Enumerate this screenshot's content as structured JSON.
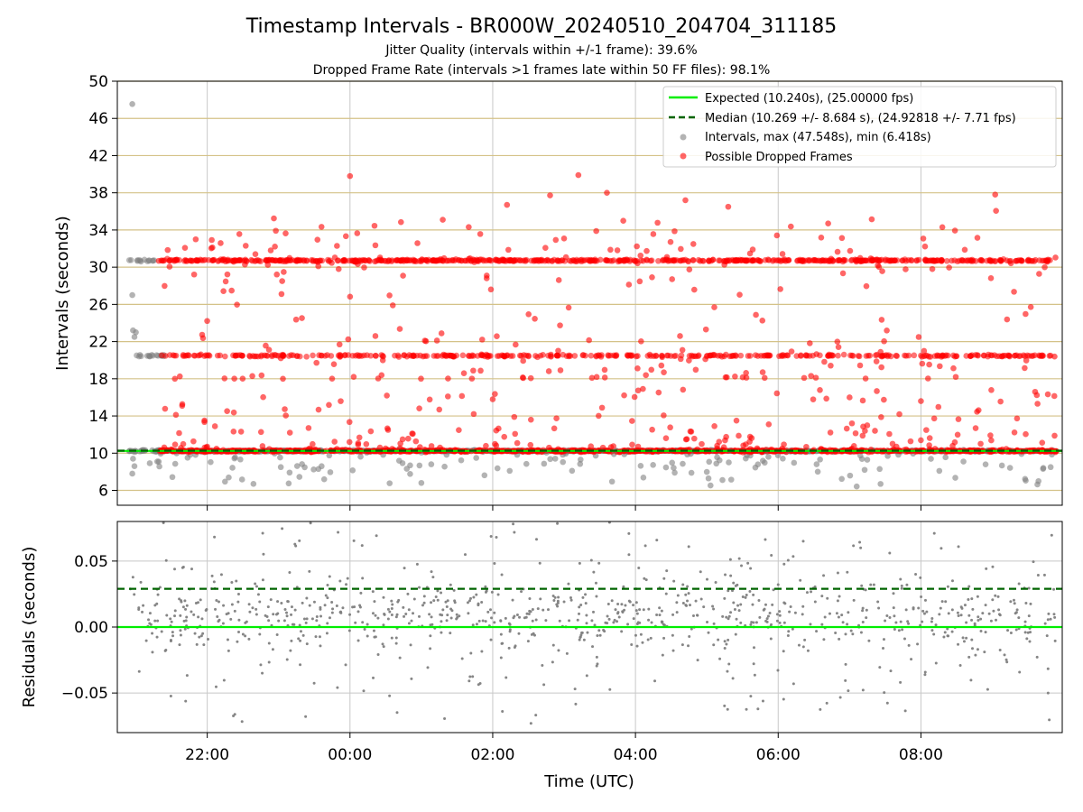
{
  "chart_data": {
    "type": "scatter",
    "title": "Timestamp Intervals - BR000W_20240510_204704_311185",
    "subtitle_lines": [
      "Jitter Quality (intervals within +/-1 frame): 39.6%",
      "Dropped Frame Rate (intervals >1 frames late within 50 FF files): 98.1%"
    ],
    "xlabel": "Time (UTC)",
    "x_tick_labels": [
      "22:00",
      "00:00",
      "02:00",
      "04:00",
      "06:00",
      "08:00"
    ],
    "x_tick_hours": [
      22,
      24,
      26,
      28,
      30,
      32
    ],
    "xlim_hours": [
      20.74,
      33.98
    ],
    "top_panel": {
      "ylabel": "Intervals (seconds)",
      "ylim": [
        4.4,
        50
      ],
      "y_ticks": [
        "6",
        "10",
        "14",
        "18",
        "22",
        "26",
        "30",
        "34",
        "38",
        "42",
        "46",
        "50"
      ],
      "y_tick_values": [
        6,
        10,
        14,
        18,
        22,
        26,
        30,
        34,
        38,
        42,
        46,
        50
      ],
      "hlines": [
        6,
        10,
        14,
        18,
        22,
        26,
        30,
        34,
        38,
        42,
        46,
        50
      ],
      "hline_color": "#d4c288",
      "expected": 10.24,
      "median": 10.269,
      "legend": [
        "Expected (10.240s), (25.00000 fps)",
        "Median (10.269 +/- 8.684 s), (24.92818 +/- 7.71 fps)",
        "Intervals, max (47.548s), min (6.418s)",
        "Possible Dropped Frames"
      ],
      "legend_position": "top-right",
      "series": [
        {
          "name": "Intervals, max (47.548s), min (6.418s)",
          "color": "#808080",
          "bands": [
            {
              "center": 10.24,
              "count": 700,
              "spread": 0.05,
              "x_range": [
                20.9,
                33.9
              ]
            },
            {
              "center": 20.48,
              "count": 18,
              "spread": 0.05,
              "x_range": [
                21.0,
                21.4
              ]
            },
            {
              "center": 30.72,
              "count": 14,
              "spread": 0.05,
              "x_range": [
                20.9,
                21.3
              ]
            }
          ],
          "outlier_range": [
            6.418,
            10.0
          ],
          "outlier_count": 130,
          "points": [
            [
              20.95,
              47.548
            ],
            [
              20.95,
              27.0
            ],
            [
              20.96,
              23.2
            ],
            [
              20.98,
              22.5
            ],
            [
              21.0,
              23.0
            ],
            [
              20.95,
              7.8
            ],
            [
              20.98,
              8.6
            ],
            [
              20.96,
              9.4
            ],
            [
              21.3,
              9.1
            ],
            [
              25.0,
              6.8
            ],
            [
              31.1,
              6.418
            ]
          ]
        },
        {
          "name": "Possible Dropped Frames",
          "color": "#ff0000",
          "bands": [
            {
              "center": 10.24,
              "count": 900,
              "spread": 0.05,
              "x_range": [
                21.3,
                33.9
              ]
            },
            {
              "center": 20.48,
              "count": 380,
              "spread": 0.05,
              "x_range": [
                21.3,
                33.9
              ]
            },
            {
              "center": 30.72,
              "count": 650,
              "spread": 0.05,
              "x_range": [
                21.3,
                33.9
              ]
            }
          ],
          "scatter_ranges": [
            [
              10.3,
              17.0,
              220
            ],
            [
              18.0,
              25.0,
              110
            ],
            [
              26.0,
              40.0,
              130
            ]
          ],
          "points": [
            [
              24.0,
              39.8
            ],
            [
              27.2,
              39.9
            ],
            [
              27.6,
              38.0
            ],
            [
              28.7,
              37.2
            ],
            [
              26.2,
              36.7
            ],
            [
              29.3,
              36.5
            ],
            [
              25.3,
              35.1
            ],
            [
              30.7,
              34.7
            ],
            [
              32.3,
              34.3
            ],
            [
              24.6,
              25.9
            ],
            [
              26.0,
              15.8
            ],
            [
              31.0,
              16.0
            ],
            [
              32.0,
              15.6
            ],
            [
              33.6,
              16.6
            ]
          ]
        }
      ]
    },
    "bottom_panel": {
      "ylabel": "Residuals (seconds)",
      "ylim": [
        -0.08,
        0.08
      ],
      "y_ticks": [
        "0.05",
        "0.00",
        "−0.05"
      ],
      "y_tick_values": [
        0.05,
        0.0,
        -0.05
      ],
      "expected": 0.0,
      "median": 0.029,
      "series": {
        "name": "Residuals",
        "color": "#808080",
        "count": 950,
        "x_range": [
          20.9,
          33.9
        ],
        "core_spread": 0.012,
        "wide_spread": 0.04
      },
      "grid": true
    },
    "colors": {
      "expected_line": "#00ee00",
      "median_line": "#006400",
      "grid": "#c8c8c8"
    }
  }
}
